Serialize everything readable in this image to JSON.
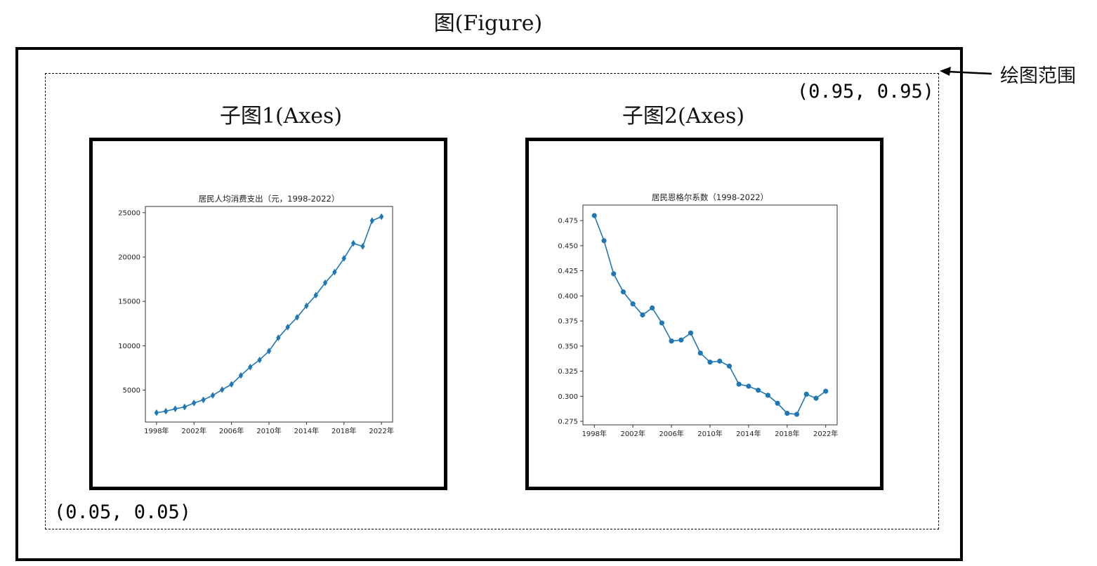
{
  "figure": {
    "title": "图(Figure)",
    "plot_range_label": "绘图范围",
    "coord_top_right": "(0.95, 0.95)",
    "coord_bottom_left": "(0.05, 0.05)"
  },
  "axes": [
    {
      "title": "子图1(Axes)"
    },
    {
      "title": "子图2(Axes)"
    }
  ],
  "colors": {
    "line": "#1f77b4",
    "frame": "#000000"
  },
  "chart_data": [
    {
      "type": "line",
      "title": "居民人均消费支出（元，1998-2022）",
      "marker": "diamond",
      "x": [
        1998,
        1999,
        2000,
        2001,
        2002,
        2003,
        2004,
        2005,
        2006,
        2007,
        2008,
        2009,
        2010,
        2011,
        2012,
        2013,
        2014,
        2015,
        2016,
        2017,
        2018,
        2019,
        2020,
        2021,
        2022
      ],
      "values": [
        2450,
        2620,
        2890,
        3100,
        3550,
        3900,
        4400,
        5050,
        5650,
        6650,
        7600,
        8400,
        9400,
        10900,
        12100,
        13200,
        14500,
        15700,
        17100,
        18300,
        19850,
        21550,
        21200,
        24100,
        24550
      ],
      "xticks": [
        "1998年",
        "2002年",
        "2006年",
        "2010年",
        "2014年",
        "2018年",
        "2022年"
      ],
      "yticks": [
        "5000",
        "10000",
        "15000",
        "20000",
        "25000"
      ],
      "ylim": [
        1400,
        25700
      ]
    },
    {
      "type": "line",
      "title": "居民恩格尔系数（1998-2022）",
      "marker": "circle",
      "x": [
        1998,
        1999,
        2000,
        2001,
        2002,
        2003,
        2004,
        2005,
        2006,
        2007,
        2008,
        2009,
        2010,
        2011,
        2012,
        2013,
        2014,
        2015,
        2016,
        2017,
        2018,
        2019,
        2020,
        2021,
        2022
      ],
      "values": [
        0.48,
        0.455,
        0.422,
        0.404,
        0.392,
        0.381,
        0.388,
        0.373,
        0.355,
        0.356,
        0.363,
        0.343,
        0.334,
        0.335,
        0.33,
        0.312,
        0.31,
        0.306,
        0.301,
        0.293,
        0.283,
        0.282,
        0.302,
        0.298,
        0.305
      ],
      "xticks": [
        "1998年",
        "2002年",
        "2006年",
        "2010年",
        "2014年",
        "2018年",
        "2022年"
      ],
      "yticks": [
        "0.275",
        "0.300",
        "0.325",
        "0.350",
        "0.375",
        "0.400",
        "0.425",
        "0.450",
        "0.475"
      ],
      "ylim": [
        0.2715,
        0.4905
      ]
    }
  ]
}
